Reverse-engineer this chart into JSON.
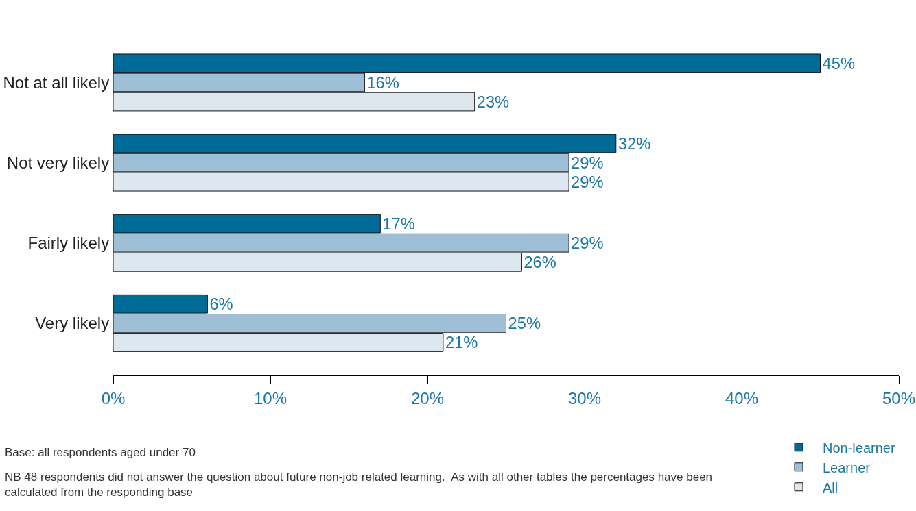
{
  "chart_data": {
    "type": "bar",
    "orientation": "horizontal",
    "categories": [
      "Not at all likely",
      "Not very likely",
      "Fairly likely",
      "Very likely"
    ],
    "series": [
      {
        "name": "Non-learner",
        "color": "#006b96",
        "values": [
          45,
          32,
          17,
          6
        ],
        "value_labels": [
          "45%",
          "32%",
          "17%",
          "6%"
        ]
      },
      {
        "name": "Learner",
        "color": "#9fbfd6",
        "values": [
          16,
          29,
          29,
          25
        ],
        "value_labels": [
          "16%",
          "29%",
          "29%",
          "25%"
        ]
      },
      {
        "name": "All",
        "color": "#dce7f0",
        "values": [
          23,
          29,
          26,
          21
        ],
        "value_labels": [
          "23%",
          "29%",
          "26%",
          "21%"
        ]
      }
    ],
    "xlim": [
      0,
      50
    ],
    "xticks": [
      {
        "value": 0,
        "label": "0%"
      },
      {
        "value": 10,
        "label": "10%"
      },
      {
        "value": 20,
        "label": "20%"
      },
      {
        "value": 30,
        "label": "30%"
      },
      {
        "value": 40,
        "label": "40%"
      },
      {
        "value": 50,
        "label": "50%"
      }
    ],
    "grid": false,
    "legend": "bottom right",
    "annotations": [
      "Base: all respondents aged under 70",
      "NB 48 respondents did not answer the question about future non-job related learning.  As with all other tables the percentages have been\ncalculated from the responding base"
    ]
  }
}
